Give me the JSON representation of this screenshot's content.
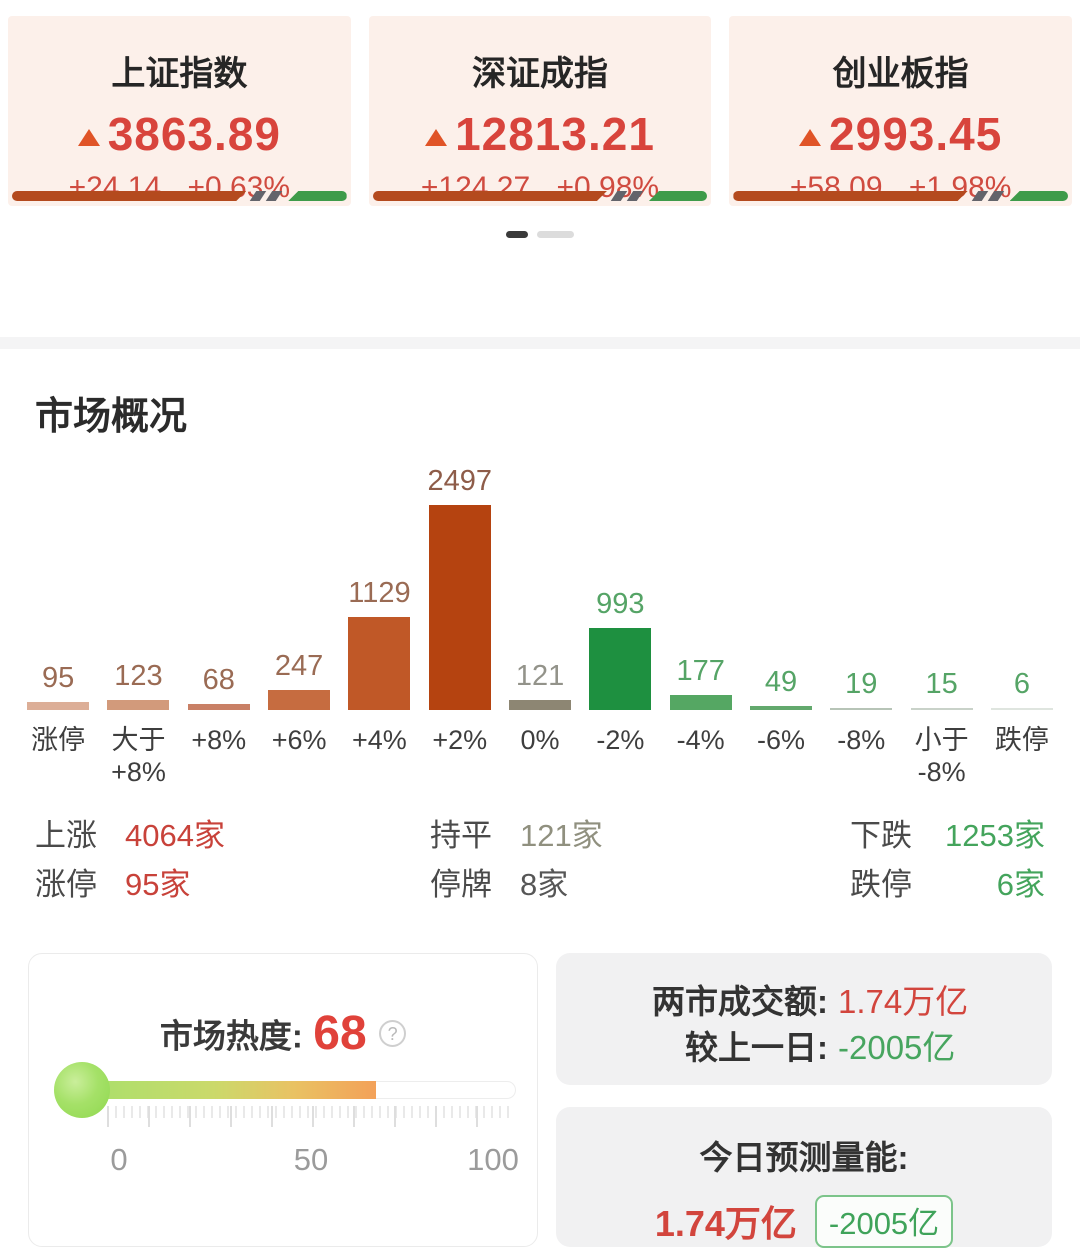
{
  "index_cards": [
    {
      "name": "上证指数",
      "value": "3863.89",
      "change": "+24.14",
      "change_pct": "+0.63%"
    },
    {
      "name": "深证成指",
      "value": "12813.21",
      "change": "+124.27",
      "change_pct": "+0.98%"
    },
    {
      "name": "创业板指",
      "value": "2993.45",
      "change": "+58.09",
      "change_pct": "+1.98%"
    }
  ],
  "pagination": {
    "count": 2,
    "active_index": 0
  },
  "chart_data": {
    "type": "bar",
    "title": "市场概况",
    "categories": [
      "涨停",
      "大于\n+8%",
      "+8%",
      "+6%",
      "+4%",
      "+2%",
      "0%",
      "-2%",
      "-4%",
      "-6%",
      "-8%",
      "小于\n-8%",
      "跌停"
    ],
    "values": [
      95,
      123,
      68,
      247,
      1129,
      2497,
      121,
      993,
      177,
      49,
      19,
      15,
      6
    ],
    "bar_colors": [
      "#dcae97",
      "#d29a7b",
      "#c98066",
      "#c66c40",
      "#c05827",
      "#b54310",
      "#8d8673",
      "#1e9040",
      "#55a763",
      "#63a96d",
      "#b7c4b7",
      "#c9d2c9",
      "#dfe5df"
    ],
    "value_colors": [
      "#9a6b54",
      "#9a6b54",
      "#9a6b54",
      "#9a6b54",
      "#9a6b54",
      "#8e5c49",
      "#93938a",
      "#55a466",
      "#55a466",
      "#55a466",
      "#55a466",
      "#55a466",
      "#55a466"
    ],
    "xlabel": "",
    "ylabel": "",
    "ylim": [
      0,
      2497
    ],
    "grid": false,
    "legend": "none",
    "value_labels": "above bars"
  },
  "stats": {
    "rows": [
      {
        "cells": [
          {
            "label": "上涨",
            "value": "4064家",
            "color": "red"
          },
          {
            "label": "持平",
            "value": "121家",
            "color": "gray"
          },
          {
            "label": "下跌",
            "value": "1253家",
            "color": "green"
          }
        ]
      },
      {
        "cells": [
          {
            "label": "涨停",
            "value": "95家",
            "color": "red"
          },
          {
            "label": "停牌",
            "value": "8家",
            "color": "dark"
          },
          {
            "label": "跌停",
            "value": "6家",
            "color": "green"
          }
        ]
      }
    ]
  },
  "heat": {
    "label": "市场热度:",
    "value": "68",
    "percent": 68,
    "help_icon": "question-mark-circle",
    "scale": {
      "min": "0",
      "mid": "50",
      "max": "100"
    }
  },
  "turnover": {
    "rows": [
      {
        "label": "两市成交额:",
        "value": "1.74万亿",
        "color": "red"
      },
      {
        "label": "较上一日:",
        "value": "-2005亿",
        "color": "green"
      }
    ]
  },
  "forecast": {
    "label": "今日预测量能:",
    "value": "1.74万亿",
    "badge": "-2005亿"
  },
  "colors": {
    "up_red": "#d8443c",
    "down_green": "#3e9b4a",
    "card_bg": "#fcf0ea",
    "footer_red": "#b44a1e",
    "footer_green": "#3e9b4a",
    "heat_value_red": "#e0423a"
  }
}
